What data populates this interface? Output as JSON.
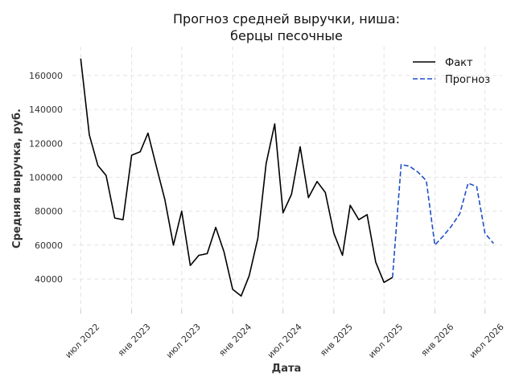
{
  "chart_data": {
    "type": "line",
    "title_lines": [
      "Прогноз средней выручки, ниша:",
      "берцы песочные"
    ],
    "xlabel": "Дата",
    "ylabel": "Средняя выручка, руб.",
    "ylim": [
      22000,
      177000
    ],
    "xlim": [
      "2022-06-01",
      "2026-09-01"
    ],
    "y_ticks": [
      40000,
      60000,
      80000,
      100000,
      120000,
      140000,
      160000
    ],
    "x_ticks": [
      {
        "date": "2022-07-01",
        "label": "июл 2022"
      },
      {
        "date": "2023-01-01",
        "label": "янв 2023"
      },
      {
        "date": "2023-07-01",
        "label": "июл 2023"
      },
      {
        "date": "2024-01-01",
        "label": "янв 2024"
      },
      {
        "date": "2024-07-01",
        "label": "июл 2024"
      },
      {
        "date": "2025-01-01",
        "label": "янв 2025"
      },
      {
        "date": "2025-07-01",
        "label": "июл 2025"
      },
      {
        "date": "2026-01-01",
        "label": "янв 2026"
      },
      {
        "date": "2026-07-01",
        "label": "июл 2026"
      }
    ],
    "grid": true,
    "legend_position": "top-right",
    "series": [
      {
        "name": "Факт",
        "color": "#000000",
        "style": "solid",
        "x": [
          "2022-07-01",
          "2022-08-01",
          "2022-09-01",
          "2022-10-01",
          "2022-11-01",
          "2022-12-01",
          "2023-01-01",
          "2023-02-01",
          "2023-03-01",
          "2023-04-01",
          "2023-05-01",
          "2023-06-01",
          "2023-07-01",
          "2023-08-01",
          "2023-09-01",
          "2023-10-01",
          "2023-11-01",
          "2023-12-01",
          "2024-01-01",
          "2024-02-01",
          "2024-03-01",
          "2024-04-01",
          "2024-05-01",
          "2024-06-01",
          "2024-07-01",
          "2024-08-01",
          "2024-09-01",
          "2024-10-01",
          "2024-11-01",
          "2024-12-01",
          "2025-01-01",
          "2025-02-01",
          "2025-03-01",
          "2025-04-01",
          "2025-05-01",
          "2025-06-01",
          "2025-07-01",
          "2025-08-01"
        ],
        "values": [
          170000,
          125000,
          107000,
          101000,
          76000,
          75000,
          113000,
          115000,
          126000,
          106000,
          87000,
          60000,
          80000,
          48000,
          54000,
          55000,
          70500,
          56000,
          34000,
          30000,
          42000,
          64000,
          108000,
          131500,
          79000,
          90000,
          118000,
          88000,
          97500,
          91000,
          67000,
          54000,
          83500,
          75000,
          78000,
          50000,
          38000,
          41000
        ]
      },
      {
        "name": "Прогноз",
        "color": "#1f4fc8",
        "style": "dashed",
        "x": [
          "2025-08-01",
          "2025-09-01",
          "2025-10-01",
          "2025-11-01",
          "2025-12-01",
          "2026-01-01",
          "2026-02-01",
          "2026-03-01",
          "2026-04-01",
          "2026-05-01",
          "2026-06-01",
          "2026-07-01",
          "2026-08-01"
        ],
        "values": [
          41000,
          107500,
          106500,
          103000,
          98000,
          60000,
          65500,
          71000,
          78500,
          96500,
          94500,
          67000,
          61000
        ]
      }
    ]
  }
}
